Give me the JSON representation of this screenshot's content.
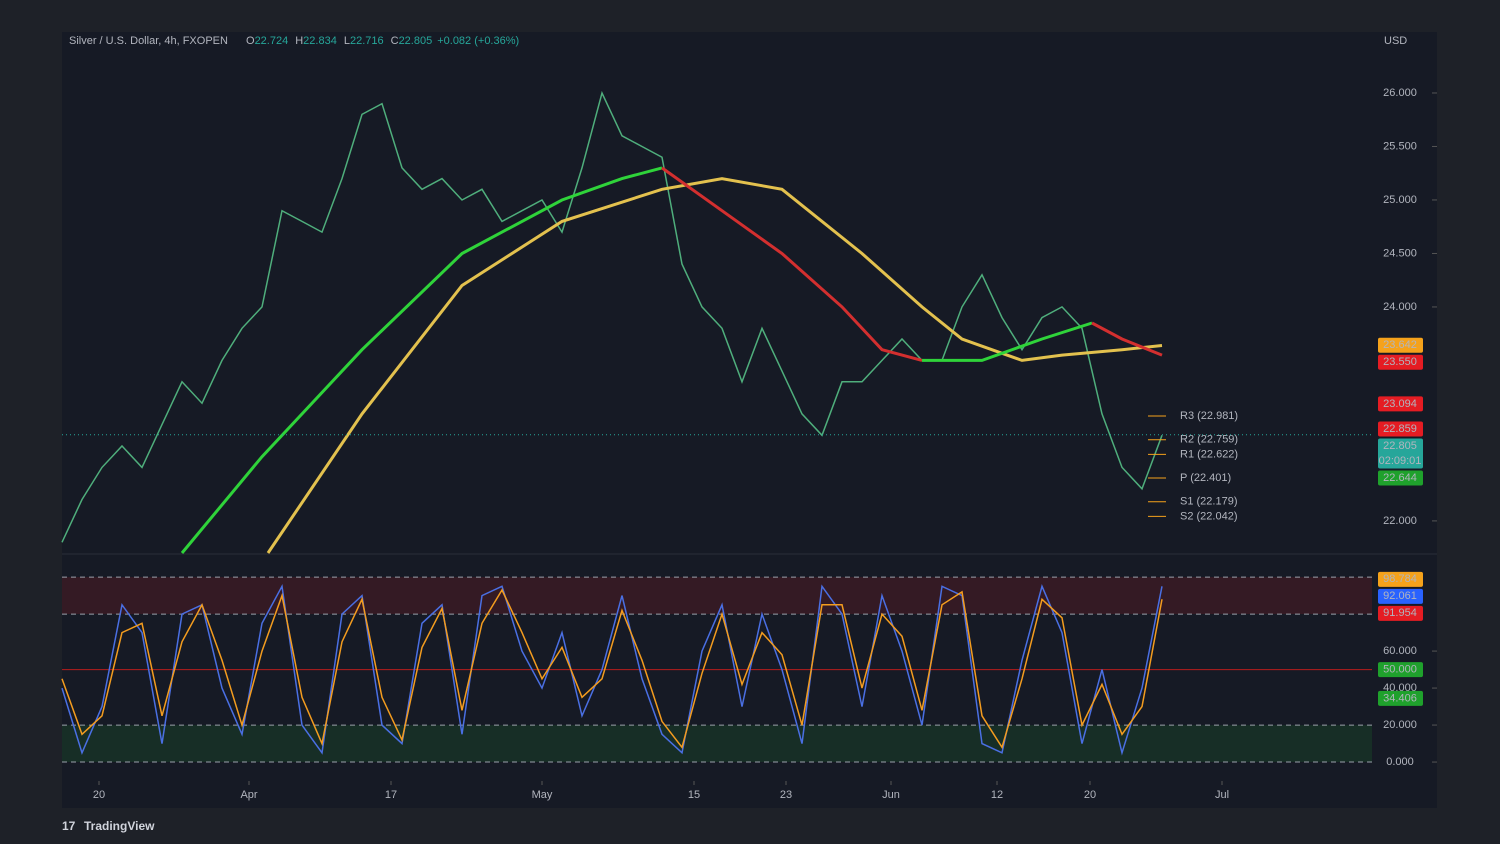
{
  "brand": "TradingView",
  "chart_data": [
    {
      "type": "line",
      "title": "Silver / U.S. Dollar, 4h, FXOPEN",
      "ohlc_labels": [
        "O",
        "H",
        "L",
        "C"
      ],
      "ohlc_values": [
        22.724,
        22.834,
        22.716,
        22.805
      ],
      "change": "+0.082 (+0.36%)",
      "currency": "USD",
      "xlim": [
        0,
        131
      ],
      "ylim": [
        21.7,
        26.57
      ],
      "yticks": [
        {
          "value": 22,
          "label": "22.000"
        },
        {
          "value": 24,
          "label": "24.000"
        },
        {
          "value": 24.5,
          "label": "24.500"
        },
        {
          "value": 25,
          "label": "25.000"
        },
        {
          "value": 25.5,
          "label": "25.500"
        },
        {
          "value": 26,
          "label": "26.000"
        }
      ],
      "grid": false,
      "series": [
        {
          "color": "#4fae7c",
          "x": [
            0,
            2,
            4,
            6,
            8,
            10,
            12,
            14,
            16,
            18,
            20,
            22,
            24,
            26,
            28,
            30,
            32,
            34,
            36,
            38,
            40,
            42,
            44,
            46,
            48,
            50,
            52,
            54,
            56,
            58,
            60,
            62,
            64,
            66,
            68,
            70,
            72,
            74,
            76,
            78,
            80,
            82,
            84,
            86,
            88,
            90,
            92,
            94,
            96,
            98,
            100,
            102,
            104,
            106,
            108,
            110
          ],
          "values": [
            21.8,
            22.2,
            22.5,
            22.7,
            22.5,
            22.9,
            23.3,
            23.1,
            23.5,
            23.8,
            24.0,
            24.9,
            24.8,
            24.7,
            25.2,
            25.8,
            25.9,
            25.3,
            25.1,
            25.2,
            25.0,
            25.1,
            24.8,
            24.9,
            25.0,
            24.7,
            25.3,
            26.0,
            25.6,
            25.5,
            25.4,
            24.4,
            24.0,
            23.8,
            23.3,
            23.8,
            23.4,
            23.0,
            22.8,
            23.3,
            23.3,
            23.5,
            23.7,
            23.5,
            23.5,
            24.0,
            24.3,
            23.9,
            23.6,
            23.9,
            24.0,
            23.8,
            23.0,
            22.5,
            22.3,
            22.8
          ]
        },
        {
          "color": "#e3c14e",
          "x": [
            20.6,
            30,
            40,
            50,
            60,
            66,
            72,
            80,
            86,
            90,
            96,
            100,
            106,
            110
          ],
          "values": [
            21.7,
            23.0,
            24.2,
            24.8,
            25.1,
            25.2,
            25.1,
            24.5,
            24.0,
            23.7,
            23.5,
            23.55,
            23.6,
            23.64
          ]
        },
        {
          "color": "#2fd33a",
          "x": [
            12,
            20,
            30,
            40,
            50,
            56,
            60
          ],
          "values": [
            21.7,
            22.6,
            23.6,
            24.5,
            25.0,
            25.2,
            25.3
          ]
        },
        {
          "color": "#d32f2f",
          "x": [
            60,
            66,
            72,
            78,
            82,
            86
          ],
          "values": [
            25.3,
            24.9,
            24.5,
            24.0,
            23.6,
            23.5
          ]
        },
        {
          "color": "#2fd33a",
          "x": [
            86,
            92,
            98,
            103
          ],
          "values": [
            23.5,
            23.5,
            23.7,
            23.85
          ]
        },
        {
          "color": "#d32f2f",
          "x": [
            103,
            106,
            110
          ],
          "values": [
            23.85,
            23.7,
            23.55
          ]
        }
      ],
      "pivots": [
        {
          "value": 22.981,
          "label": "R3 (22.981)"
        },
        {
          "value": 22.759,
          "label": "R2 (22.759)"
        },
        {
          "value": 22.622,
          "label": "R1 (22.622)"
        },
        {
          "value": 22.401,
          "label": "P (22.401)"
        },
        {
          "value": 22.179,
          "label": "S1 (22.179)"
        },
        {
          "value": 22.042,
          "label": "S2 (22.042)"
        }
      ],
      "price_labels": [
        {
          "value": 23.642,
          "color": "#f5a21b"
        },
        {
          "value": 23.55,
          "label": "23.550",
          "color": "#e51c23"
        },
        {
          "value": 23.094,
          "color": "#e51c23"
        },
        {
          "value": 22.859,
          "color": "#e51c23"
        },
        {
          "value": 22.805,
          "color": "#26a69a",
          "countdown": "02:09:01"
        },
        {
          "value": 22.644,
          "color": "#1fa12c"
        }
      ]
    },
    {
      "type": "line",
      "xlim": [
        0,
        131
      ],
      "ylim": [
        -9.7,
        111.4
      ],
      "xticks": [
        {
          "value": 3.7,
          "label": "20"
        },
        {
          "value": 18.7,
          "label": "Apr"
        },
        {
          "value": 32.9,
          "label": "17"
        },
        {
          "value": 48,
          "label": "May"
        },
        {
          "value": 63.2,
          "label": "15"
        },
        {
          "value": 72.4,
          "label": "23"
        },
        {
          "value": 82.9,
          "label": "Jun"
        },
        {
          "value": 93.5,
          "label": "12"
        },
        {
          "value": 102.8,
          "label": "20"
        },
        {
          "value": 116,
          "label": "Jul"
        }
      ],
      "yticks": [
        {
          "value": 0,
          "label": "0.000"
        },
        {
          "value": 20,
          "label": "20.000"
        },
        {
          "value": 40,
          "label": "40.000"
        },
        {
          "value": 60,
          "label": "60.000"
        }
      ],
      "series": [
        {
          "color": "#4a6fe3",
          "x": [
            0,
            2,
            4,
            6,
            8,
            10,
            12,
            14,
            16,
            18,
            20,
            22,
            24,
            26,
            28,
            30,
            32,
            34,
            36,
            38,
            40,
            42,
            44,
            46,
            48,
            50,
            52,
            54,
            56,
            58,
            60,
            62,
            64,
            66,
            68,
            70,
            72,
            74,
            76,
            78,
            80,
            82,
            84,
            86,
            88,
            90,
            92,
            94,
            96,
            98,
            100,
            102,
            104,
            106,
            108,
            110
          ],
          "values": [
            40,
            5,
            30,
            85,
            70,
            10,
            80,
            85,
            40,
            15,
            75,
            95,
            20,
            5,
            80,
            90,
            20,
            10,
            75,
            85,
            15,
            90,
            95,
            60,
            40,
            70,
            25,
            50,
            90,
            45,
            15,
            5,
            60,
            85,
            30,
            80,
            50,
            10,
            95,
            80,
            30,
            90,
            60,
            20,
            95,
            90,
            10,
            5,
            55,
            95,
            70,
            10,
            50,
            5,
            40,
            95
          ]
        },
        {
          "color": "#f39c1f",
          "x": [
            0,
            2,
            4,
            6,
            8,
            10,
            12,
            14,
            16,
            18,
            20,
            22,
            24,
            26,
            28,
            30,
            32,
            34,
            36,
            38,
            40,
            42,
            44,
            46,
            48,
            50,
            52,
            54,
            56,
            58,
            60,
            62,
            64,
            66,
            68,
            70,
            72,
            74,
            76,
            78,
            80,
            82,
            84,
            86,
            88,
            90,
            92,
            94,
            96,
            98,
            100,
            102,
            104,
            106,
            108,
            110
          ],
          "values": [
            45,
            15,
            25,
            70,
            75,
            25,
            65,
            85,
            55,
            20,
            60,
            90,
            35,
            10,
            65,
            88,
            35,
            12,
            62,
            83,
            28,
            75,
            93,
            70,
            45,
            62,
            35,
            45,
            82,
            55,
            22,
            8,
            48,
            80,
            42,
            70,
            58,
            20,
            85,
            85,
            40,
            80,
            68,
            28,
            85,
            92,
            25,
            8,
            45,
            88,
            78,
            20,
            42,
            15,
            30,
            88
          ]
        }
      ],
      "upper_band": [
        80,
        100
      ],
      "lower_band": [
        0,
        20
      ],
      "mid_line": 50,
      "value_labels": [
        {
          "value": 98.784,
          "color": "#f5a21b"
        },
        {
          "value": 92.061,
          "color": "#2962ff"
        },
        {
          "value": 91.954,
          "color": "#e51c23"
        },
        {
          "value": 50,
          "label": "50.000",
          "color": "#1fa12c"
        },
        {
          "value": 34.406,
          "color": "#1fa12c"
        }
      ]
    }
  ]
}
